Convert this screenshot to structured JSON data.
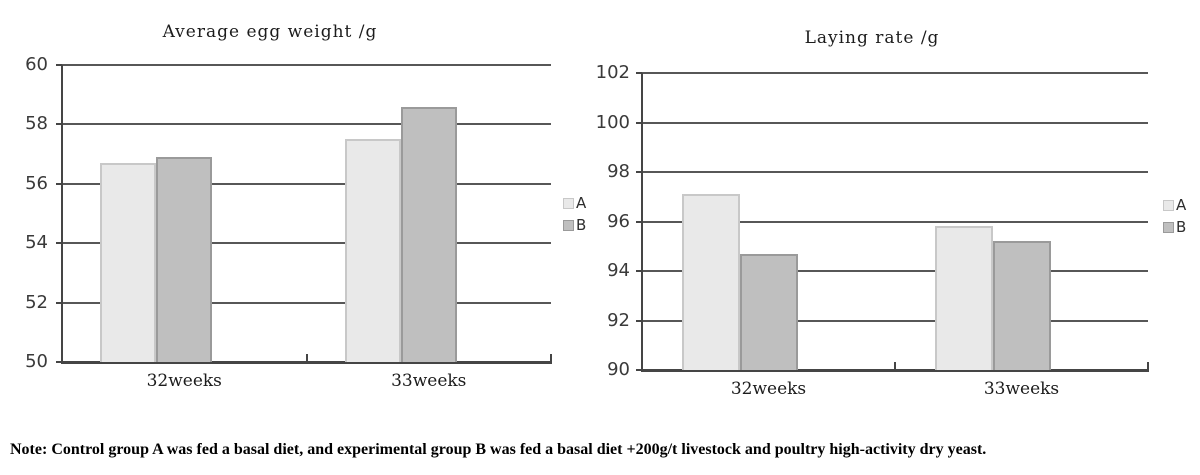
{
  "note": "Note: Control group A was fed a basal diet, and experimental group B was fed a basal diet +200g/t livestock and poultry high-activity dry yeast.",
  "colors": {
    "bar_a_fill": "#e9e9e9",
    "bar_a_border": "#c8c8c8",
    "bar_b_fill": "#bfbfbf",
    "bar_b_border": "#9a9a9a",
    "gridline": "#575757",
    "axis": "#454545",
    "text": "#1c1c1c"
  },
  "chart_data": [
    {
      "type": "bar",
      "title": "Average egg weight /g",
      "categories": [
        "32weeks",
        "33weeks"
      ],
      "series": [
        {
          "name": "A",
          "values": [
            56.7,
            57.5
          ]
        },
        {
          "name": "B",
          "values": [
            56.9,
            58.6
          ]
        }
      ],
      "xlabel": "",
      "ylabel": "",
      "ylim": [
        50,
        60
      ],
      "ytick_step": 2,
      "grid": true,
      "legend_position": "right"
    },
    {
      "type": "bar",
      "title": "Laying rate /g",
      "categories": [
        "32weeks",
        "33weeks"
      ],
      "series": [
        {
          "name": "A",
          "values": [
            97.1,
            95.8
          ]
        },
        {
          "name": "B",
          "values": [
            94.7,
            95.2
          ]
        }
      ],
      "xlabel": "",
      "ylabel": "",
      "ylim": [
        90,
        102
      ],
      "ytick_step": 2,
      "grid": true,
      "legend_position": "right"
    }
  ]
}
